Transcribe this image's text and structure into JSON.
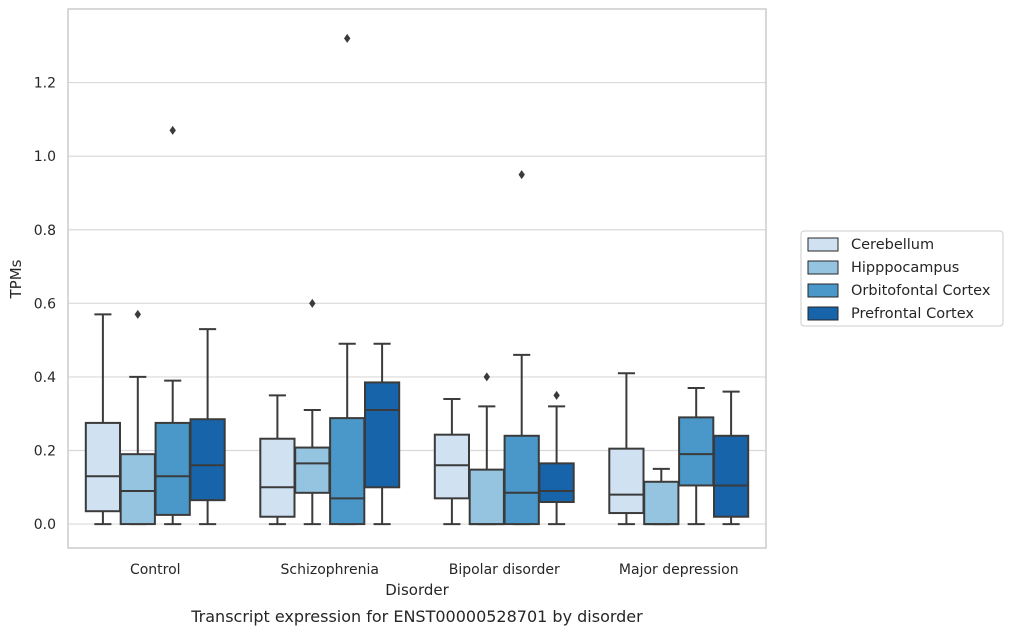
{
  "caption": "Transcript expression for ENST00000528701 by disorder",
  "chart_data": {
    "type": "box",
    "xlabel": "Disorder",
    "ylabel": "TPMs",
    "ylim": [
      -0.065,
      1.4
    ],
    "yticks": [
      0.0,
      0.2,
      0.4,
      0.6,
      0.8,
      1.0,
      1.2
    ],
    "ytick_labels": [
      "0.0",
      "0.2",
      "0.4",
      "0.6",
      "0.8",
      "1.0",
      "1.2"
    ],
    "categories": [
      "Control",
      "Schizophrenia",
      "Bipolar disorder",
      "Major depression"
    ],
    "grid": "horizontal",
    "legend_position": "right",
    "series": [
      {
        "name": "Cerebellum",
        "color": "#d0e1f2",
        "boxes": [
          {
            "whislo": 0.0,
            "q1": 0.035,
            "med": 0.13,
            "q3": 0.275,
            "whishi": 0.57,
            "fliers": []
          },
          {
            "whislo": 0.0,
            "q1": 0.02,
            "med": 0.1,
            "q3": 0.232,
            "whishi": 0.35,
            "fliers": []
          },
          {
            "whislo": 0.0,
            "q1": 0.07,
            "med": 0.16,
            "q3": 0.243,
            "whishi": 0.34,
            "fliers": []
          },
          {
            "whislo": 0.0,
            "q1": 0.03,
            "med": 0.08,
            "q3": 0.205,
            "whishi": 0.41,
            "fliers": []
          }
        ]
      },
      {
        "name": "Hipppocampus",
        "color": "#94c4df",
        "boxes": [
          {
            "whislo": 0.0,
            "q1": 0.0,
            "med": 0.09,
            "q3": 0.19,
            "whishi": 0.4,
            "fliers": [
              0.57
            ]
          },
          {
            "whislo": 0.0,
            "q1": 0.085,
            "med": 0.165,
            "q3": 0.208,
            "whishi": 0.31,
            "fliers": [
              0.6
            ]
          },
          {
            "whislo": 0.0,
            "q1": 0.0,
            "med": 0.0,
            "q3": 0.148,
            "whishi": 0.32,
            "fliers": [
              0.4
            ]
          },
          {
            "whislo": 0.0,
            "q1": 0.0,
            "med": 0.0,
            "q3": 0.115,
            "whishi": 0.15,
            "fliers": []
          }
        ]
      },
      {
        "name": "Orbitofontal Cortex",
        "color": "#4a98c9",
        "boxes": [
          {
            "whislo": 0.0,
            "q1": 0.025,
            "med": 0.13,
            "q3": 0.275,
            "whishi": 0.39,
            "fliers": [
              1.07
            ]
          },
          {
            "whislo": 0.0,
            "q1": 0.0,
            "med": 0.07,
            "q3": 0.288,
            "whishi": 0.49,
            "fliers": [
              1.32
            ]
          },
          {
            "whislo": 0.0,
            "q1": 0.0,
            "med": 0.085,
            "q3": 0.24,
            "whishi": 0.46,
            "fliers": [
              0.95
            ]
          },
          {
            "whislo": 0.0,
            "q1": 0.105,
            "med": 0.19,
            "q3": 0.29,
            "whishi": 0.37,
            "fliers": []
          }
        ]
      },
      {
        "name": "Prefrontal Cortex",
        "color": "#1764ab",
        "boxes": [
          {
            "whislo": 0.0,
            "q1": 0.065,
            "med": 0.16,
            "q3": 0.285,
            "whishi": 0.53,
            "fliers": []
          },
          {
            "whislo": 0.0,
            "q1": 0.1,
            "med": 0.31,
            "q3": 0.385,
            "whishi": 0.49,
            "fliers": []
          },
          {
            "whislo": 0.0,
            "q1": 0.06,
            "med": 0.09,
            "q3": 0.165,
            "whishi": 0.32,
            "fliers": [
              0.35
            ]
          },
          {
            "whislo": 0.0,
            "q1": 0.02,
            "med": 0.105,
            "q3": 0.24,
            "whishi": 0.36,
            "fliers": []
          }
        ]
      }
    ]
  }
}
